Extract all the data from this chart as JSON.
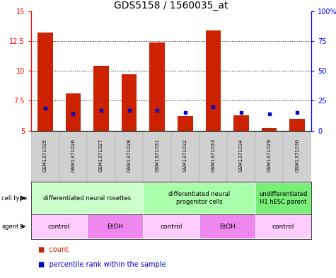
{
  "title": "GDS5158 / 1560035_at",
  "samples": [
    "GSM1371025",
    "GSM1371026",
    "GSM1371027",
    "GSM1371028",
    "GSM1371031",
    "GSM1371032",
    "GSM1371033",
    "GSM1371034",
    "GSM1371029",
    "GSM1371030"
  ],
  "count_values": [
    13.2,
    8.1,
    10.4,
    9.7,
    12.4,
    6.2,
    13.4,
    6.3,
    5.2,
    6.0
  ],
  "percentile_values": [
    6.9,
    6.4,
    6.7,
    6.7,
    6.7,
    6.5,
    7.0,
    6.5,
    6.4,
    6.5
  ],
  "ymin": 5.0,
  "ymax": 15.0,
  "yticks": [
    5.0,
    7.5,
    10.0,
    12.5,
    15.0
  ],
  "right_yticks": [
    0,
    25,
    50,
    75,
    100
  ],
  "bar_color": "#cc2200",
  "percentile_color": "#0000cc",
  "bg_color": "#ffffff",
  "cell_type_groups": [
    {
      "label": "differentiated neural rosettes",
      "start": 0,
      "end": 3,
      "color": "#ccffcc"
    },
    {
      "label": "differentiated neural\nprogenitor cells",
      "start": 4,
      "end": 7,
      "color": "#aaffaa"
    },
    {
      "label": "undifferentiated\nH1 hESC parent",
      "start": 8,
      "end": 9,
      "color": "#77ee77"
    }
  ],
  "agent_groups": [
    {
      "label": "control",
      "start": 0,
      "end": 1,
      "color": "#ffccff"
    },
    {
      "label": "EtOH",
      "start": 2,
      "end": 3,
      "color": "#ee88ee"
    },
    {
      "label": "control",
      "start": 4,
      "end": 5,
      "color": "#ffccff"
    },
    {
      "label": "EtOH",
      "start": 6,
      "end": 7,
      "color": "#ee88ee"
    },
    {
      "label": "control",
      "start": 8,
      "end": 9,
      "color": "#ffccff"
    }
  ],
  "title_fontsize": 10,
  "tick_fontsize": 7,
  "sample_fontsize": 5,
  "table_fontsize": 6,
  "legend_fontsize": 7
}
